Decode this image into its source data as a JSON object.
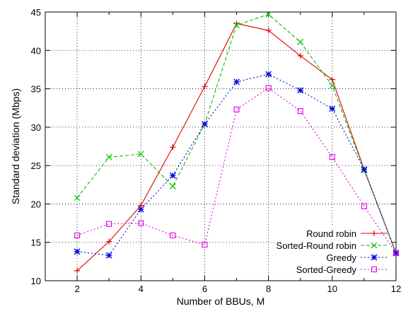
{
  "chart_data": {
    "type": "line",
    "xlabel": "Number of BBUs, M",
    "ylabel": "Standard deviation (Mbps)",
    "xlim": [
      1,
      12
    ],
    "ylim": [
      10,
      45
    ],
    "xticks": [
      2,
      4,
      6,
      8,
      10,
      12
    ],
    "yticks": [
      10,
      15,
      20,
      25,
      30,
      35,
      40,
      45
    ],
    "grid": true,
    "legend_position": "bottom-right",
    "x": [
      2,
      3,
      4,
      5,
      6,
      7,
      8,
      9,
      10,
      11,
      12
    ],
    "series": [
      {
        "name": "Round robin",
        "color": "#e00000",
        "line_style": "solid",
        "marker": "plus",
        "values": [
          11.3,
          15.1,
          19.8,
          27.4,
          35.3,
          43.5,
          42.6,
          39.3,
          36.2,
          24.5,
          13.6
        ]
      },
      {
        "name": "Sorted-Round robin",
        "color": "#00c000",
        "line_style": "dashed",
        "marker": "x",
        "values": [
          20.8,
          26.1,
          26.5,
          22.3,
          30.4,
          43.3,
          44.7,
          41.1,
          35.4,
          24.4,
          13.6
        ]
      },
      {
        "name": "Greedy",
        "color": "#0000d8",
        "line_style": "dotted",
        "marker": "star",
        "values": [
          13.8,
          13.3,
          19.3,
          23.7,
          30.4,
          35.9,
          36.9,
          34.8,
          32.4,
          24.5,
          13.6
        ]
      },
      {
        "name": "Sorted-Greedy",
        "color": "#e000e0",
        "line_style": "dotted",
        "marker": "square",
        "values": [
          15.9,
          17.4,
          17.5,
          15.9,
          14.7,
          32.3,
          35.1,
          32.1,
          26.1,
          19.7,
          13.6
        ]
      }
    ]
  }
}
